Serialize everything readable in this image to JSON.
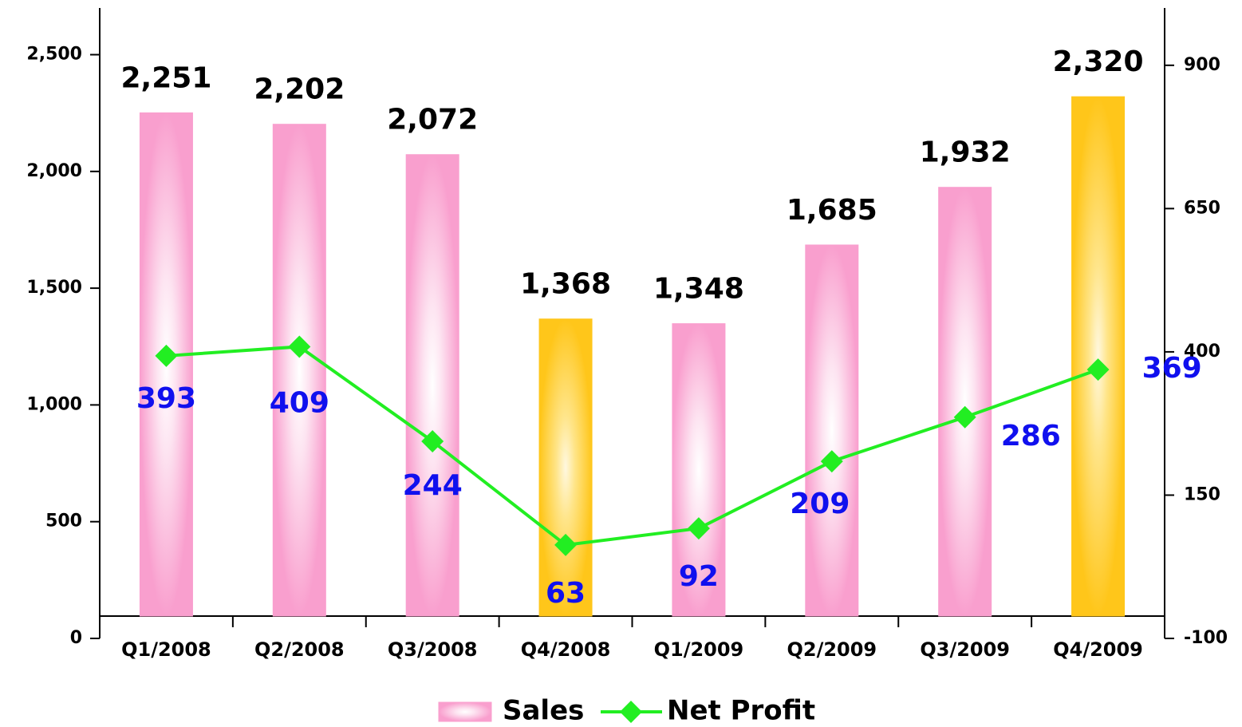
{
  "chart_data": {
    "type": "bar",
    "categories": [
      "Q1/2008",
      "Q2/2008",
      "Q3/2008",
      "Q4/2008",
      "Q1/2009",
      "Q2/2009",
      "Q3/2009",
      "Q4/2009"
    ],
    "series": [
      {
        "name": "Sales",
        "type": "bar",
        "colors": [
          "#f99fce",
          "#f99fce",
          "#f99fce",
          "#ffc61a",
          "#f99fce",
          "#f99fce",
          "#f99fce",
          "#ffc61a"
        ],
        "values": [
          2251,
          2202,
          2072,
          1368,
          1348,
          1685,
          1932,
          2320
        ],
        "value_labels": [
          "2,251",
          "2,202",
          "2,072",
          "1,368",
          "1,348",
          "1,685",
          "1,932",
          "2,320"
        ]
      },
      {
        "name": "Net Profit",
        "type": "line",
        "axis": "y2",
        "color": "#22ee22",
        "values": [
          393,
          409,
          244,
          63,
          92,
          209,
          286,
          369
        ]
      }
    ],
    "ylim": [
      0,
      2700
    ],
    "yticks": [
      0,
      500,
      {
        "value": 1000,
        "label": "1,000"
      },
      {
        "value": 1500,
        "label": "1,500"
      },
      {
        "value": 2000,
        "label": "2,000"
      },
      {
        "value": 2500,
        "label": "2,500"
      }
    ],
    "y2lim": [
      -100,
      1000
    ],
    "y2ticks": [
      -100,
      150,
      400,
      650,
      900
    ],
    "legend": "bottom"
  }
}
